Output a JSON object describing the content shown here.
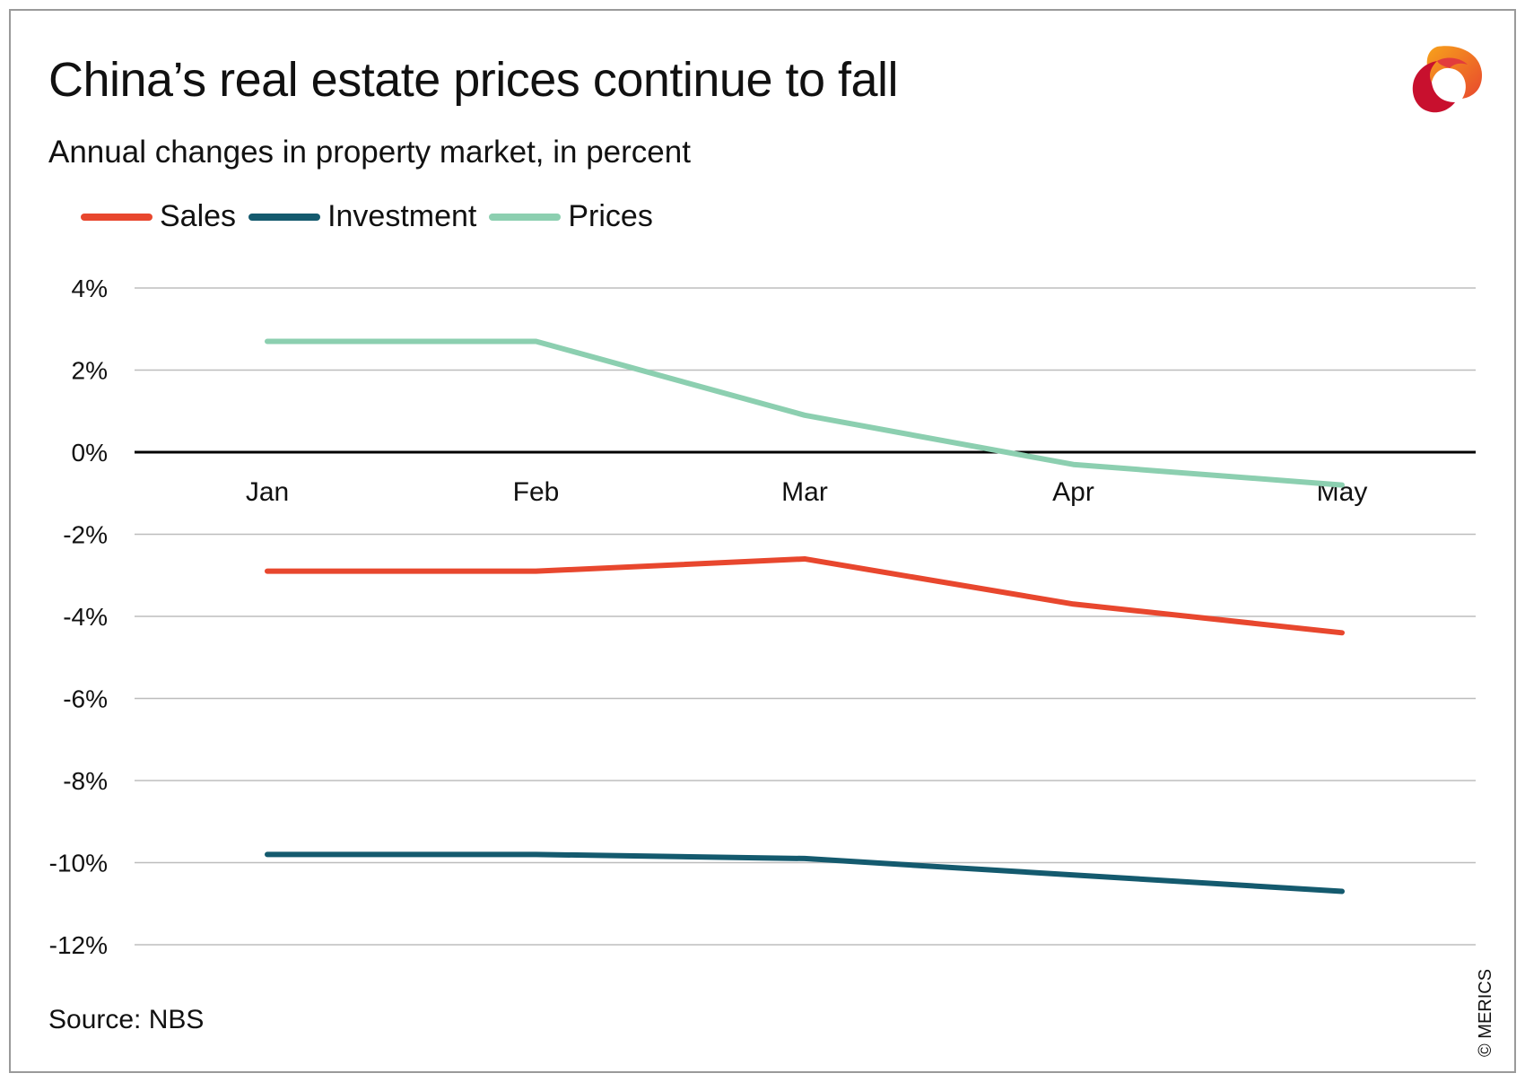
{
  "header": {
    "title": "China’s real estate prices continue to fall",
    "subtitle": "Annual changes in property market, in percent"
  },
  "footer": {
    "source": "Source: NBS",
    "copyright": "© MERICS"
  },
  "colors": {
    "sales": "#e8472e",
    "investment": "#145a6e",
    "prices": "#8ccfb0",
    "grid": "#bdbdbd",
    "zero_line": "#000000"
  },
  "chart_data": {
    "type": "line",
    "title": "China’s real estate prices continue to fall",
    "subtitle": "Annual changes in property market, in percent",
    "categories": [
      "Jan",
      "Feb",
      "Mar",
      "Apr",
      "May"
    ],
    "ylim": [
      -12,
      4
    ],
    "yticks": [
      4,
      2,
      0,
      -2,
      -4,
      -6,
      -8,
      -10,
      -12
    ],
    "ytick_labels": [
      "4%",
      "2%",
      "0%",
      "-2%",
      "-4%",
      "-6%",
      "-8%",
      "-10%",
      "-12%"
    ],
    "grid": true,
    "legend_position": "top-left",
    "series": [
      {
        "name": "Sales",
        "values": [
          -2.9,
          -2.9,
          -2.6,
          -3.7,
          -4.4
        ]
      },
      {
        "name": "Investment",
        "values": [
          -9.8,
          -9.8,
          -9.9,
          -10.3,
          -10.7
        ]
      },
      {
        "name": "Prices",
        "values": [
          2.7,
          2.7,
          0.9,
          -0.3,
          -0.8
        ]
      }
    ]
  }
}
